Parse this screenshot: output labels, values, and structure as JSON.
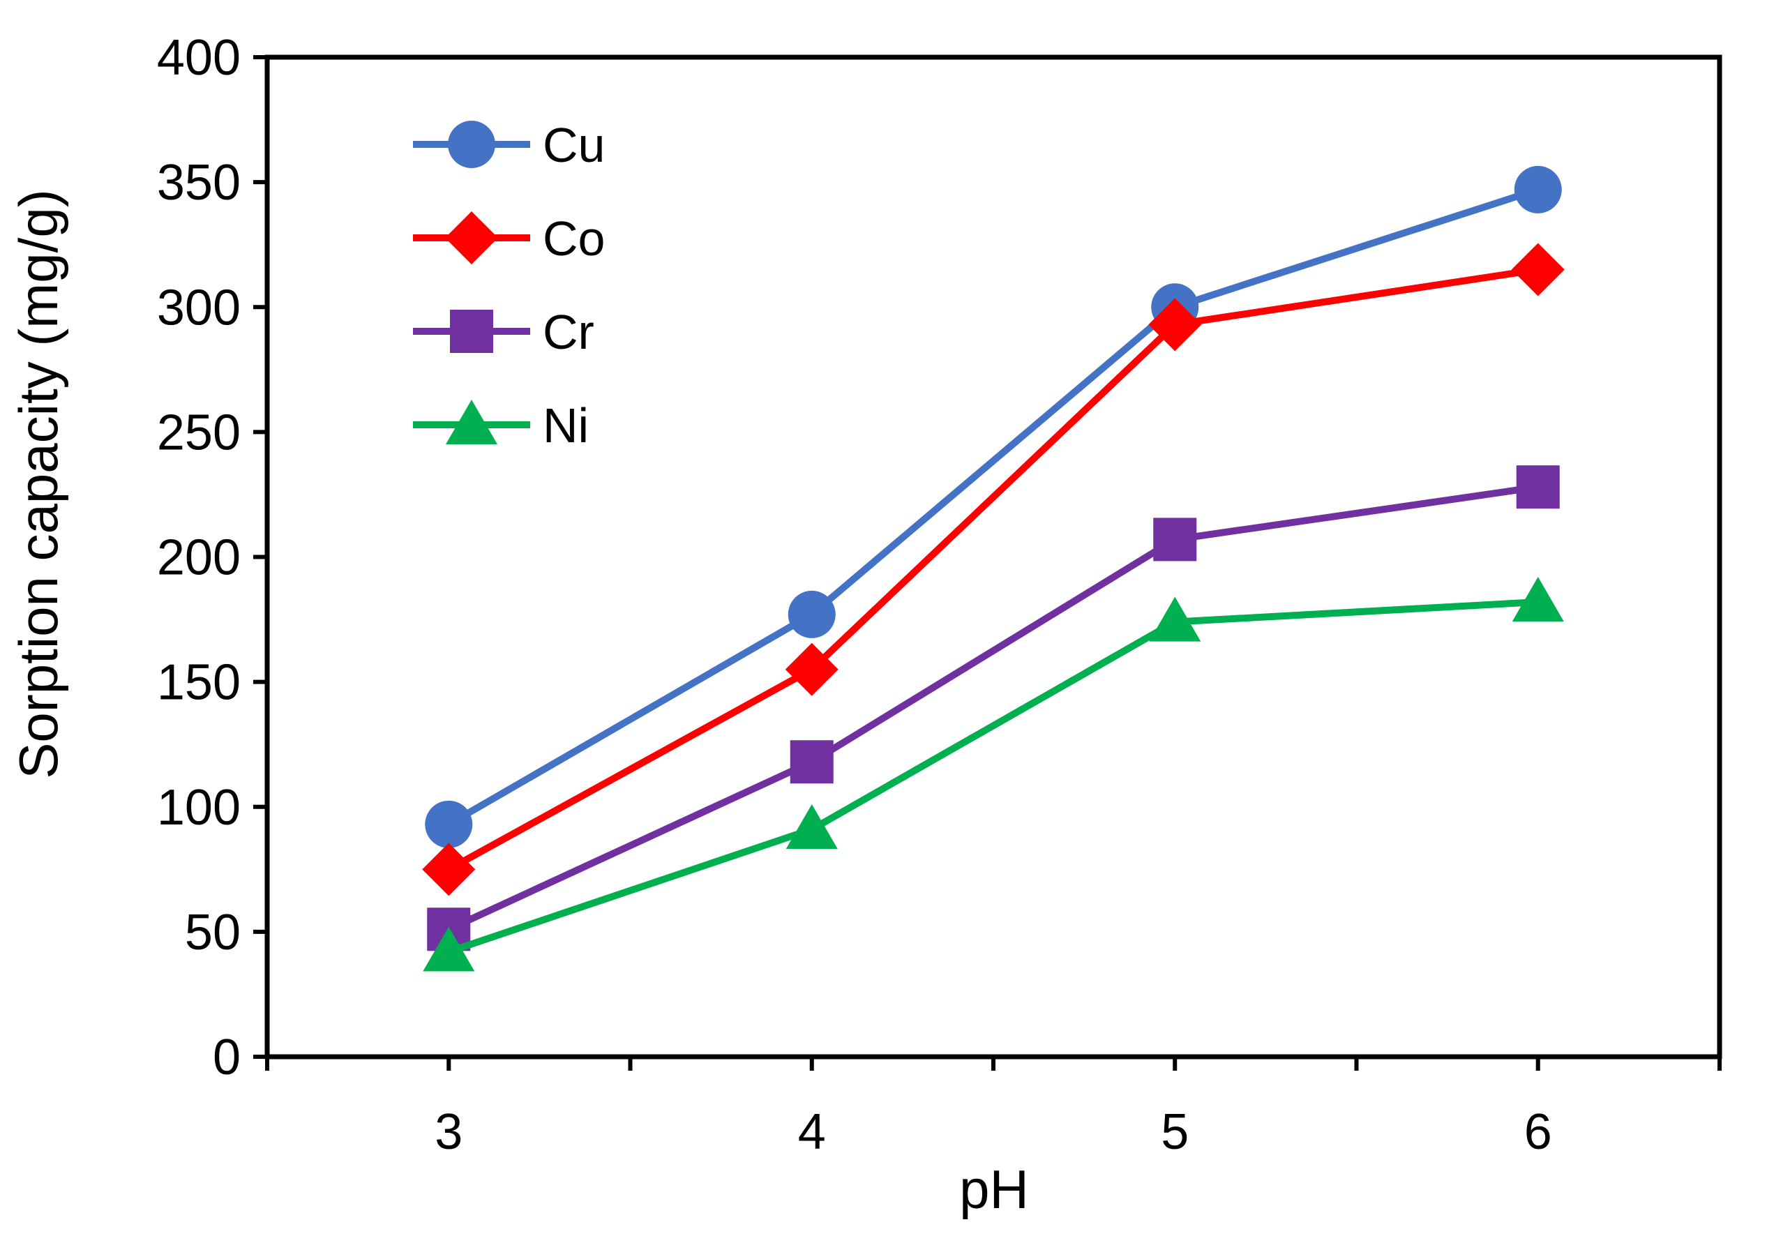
{
  "chart_data": {
    "type": "line",
    "title": "",
    "xlabel": "pH",
    "ylabel": "Sorption capacity (mg/g)",
    "x": [
      3,
      4,
      5,
      6
    ],
    "x_ticks": [
      "3",
      "4",
      "5",
      "6"
    ],
    "y_ticks": [
      "0",
      "50",
      "100",
      "150",
      "200",
      "250",
      "300",
      "350",
      "400"
    ],
    "xlim": [
      2.5,
      6.5
    ],
    "ylim": [
      0,
      400
    ],
    "grid": false,
    "legend_position": "top-left",
    "series": [
      {
        "name": "Cu",
        "marker": "circle",
        "color": "#4472C4",
        "values": [
          93,
          177,
          300,
          347
        ]
      },
      {
        "name": "Co",
        "marker": "diamond",
        "color": "#FF0000",
        "values": [
          75,
          155,
          293,
          315
        ]
      },
      {
        "name": "Cr",
        "marker": "square",
        "color": "#7030A0",
        "values": [
          51,
          118,
          207,
          228
        ]
      },
      {
        "name": "Ni",
        "marker": "triangle",
        "color": "#00B050",
        "values": [
          42,
          91,
          174,
          182
        ]
      }
    ]
  }
}
